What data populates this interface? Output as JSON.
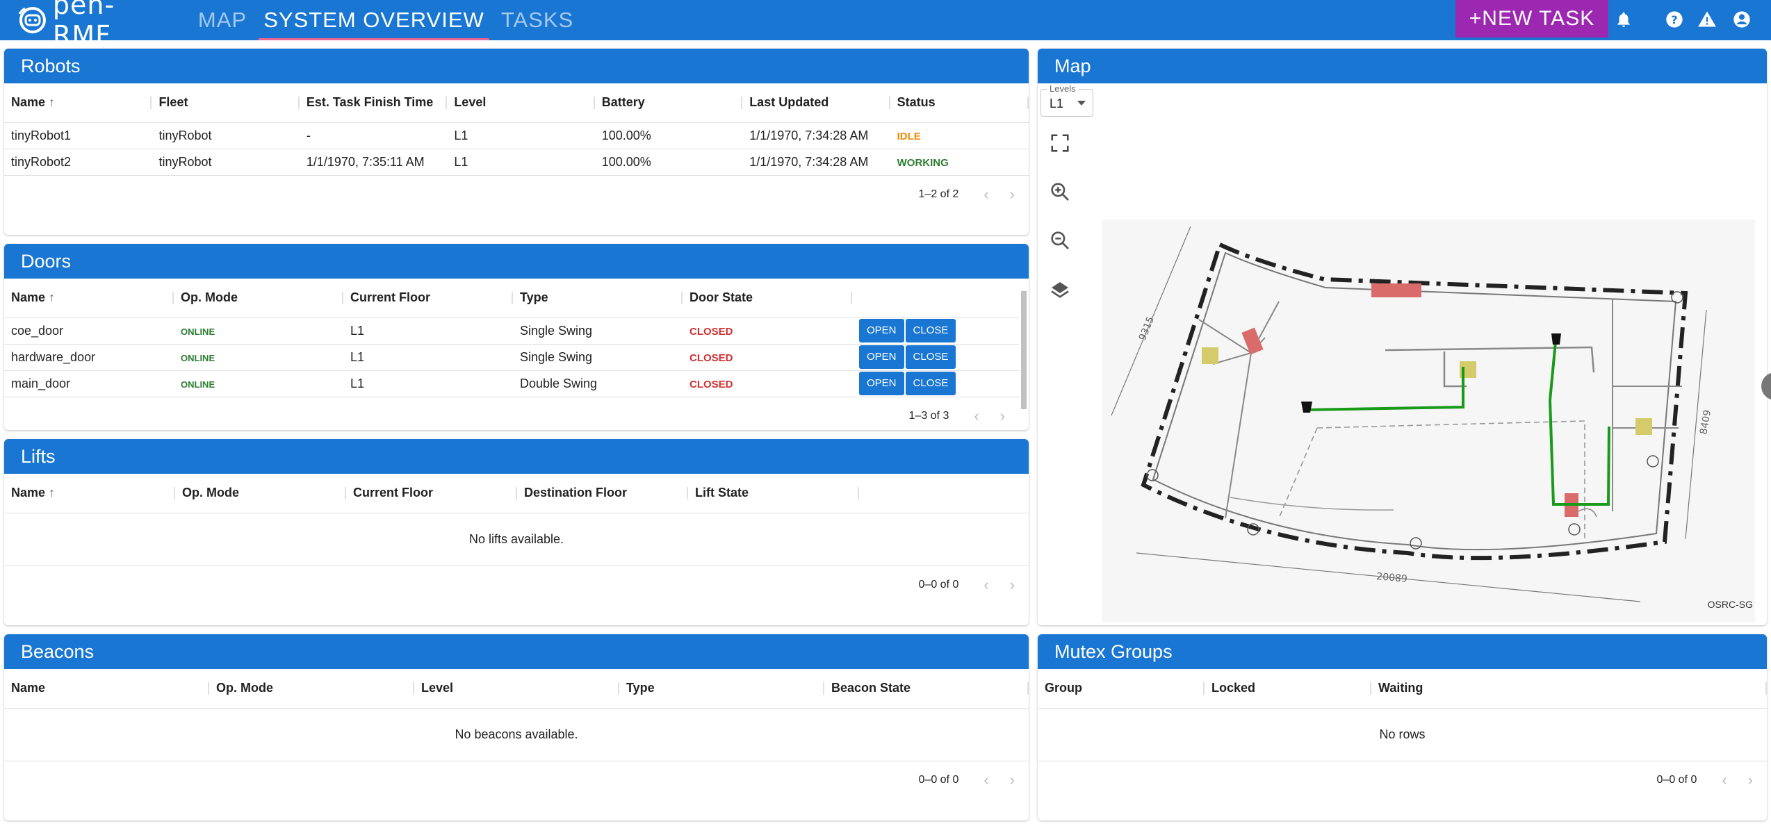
{
  "app": {
    "logo_text": "pen-RMF",
    "nav": [
      {
        "label": "MAP",
        "active": false
      },
      {
        "label": "SYSTEM OVERVIEW",
        "active": true
      },
      {
        "label": "TASKS",
        "active": false
      }
    ],
    "new_task_label": "+NEW TASK",
    "icons": [
      "bell-icon",
      "help-icon",
      "warning-icon",
      "account-icon"
    ],
    "colors": {
      "primary": "#1976d2",
      "accent": "#9c27b0",
      "idle": "#ed8a00",
      "working": "#2e7d32",
      "closed": "#d32f2f"
    }
  },
  "robots": {
    "title": "Robots",
    "columns": [
      "Name",
      "Fleet",
      "Est. Task Finish Time",
      "Level",
      "Battery",
      "Last Updated",
      "Status"
    ],
    "rows": [
      {
        "name": "tinyRobot1",
        "fleet": "tinyRobot",
        "finish": "-",
        "level": "L1",
        "battery": "100.00%",
        "updated": "1/1/1970, 7:34:28 AM",
        "status": "IDLE"
      },
      {
        "name": "tinyRobot2",
        "fleet": "tinyRobot",
        "finish": "1/1/1970, 7:35:11 AM",
        "level": "L1",
        "battery": "100.00%",
        "updated": "1/1/1970, 7:34:28 AM",
        "status": "WORKING"
      }
    ],
    "pagination": "1–2 of 2"
  },
  "doors": {
    "title": "Doors",
    "columns": [
      "Name",
      "Op. Mode",
      "Current Floor",
      "Type",
      "Door State"
    ],
    "rows": [
      {
        "name": "coe_door",
        "mode": "ONLINE",
        "floor": "L1",
        "type": "Single Swing",
        "state": "CLOSED"
      },
      {
        "name": "hardware_door",
        "mode": "ONLINE",
        "floor": "L1",
        "type": "Single Swing",
        "state": "CLOSED"
      },
      {
        "name": "main_door",
        "mode": "ONLINE",
        "floor": "L1",
        "type": "Double Swing",
        "state": "CLOSED"
      }
    ],
    "open_label": "OPEN",
    "close_label": "CLOSE",
    "pagination": "1–3 of 3"
  },
  "lifts": {
    "title": "Lifts",
    "columns": [
      "Name",
      "Op. Mode",
      "Current Floor",
      "Destination Floor",
      "Lift State"
    ],
    "empty": "No lifts available.",
    "pagination": "0–0 of 0"
  },
  "beacons": {
    "title": "Beacons",
    "columns": [
      "Name",
      "Op. Mode",
      "Level",
      "Type",
      "Beacon State"
    ],
    "empty": "No beacons available.",
    "pagination": "0–0 of 0"
  },
  "map": {
    "title": "Map",
    "levels_label": "Levels",
    "level_value": "L1",
    "attribution": "OSRC-SG",
    "dims": {
      "left": "9315",
      "right": "8409",
      "bottom": "20089"
    },
    "controls": [
      "fullscreen-icon",
      "zoom-in-icon",
      "zoom-out-icon",
      "layers-icon"
    ]
  },
  "mutex": {
    "title": "Mutex Groups",
    "columns": [
      "Group",
      "Locked",
      "Waiting"
    ],
    "empty": "No rows",
    "pagination": "0–0 of 0"
  }
}
